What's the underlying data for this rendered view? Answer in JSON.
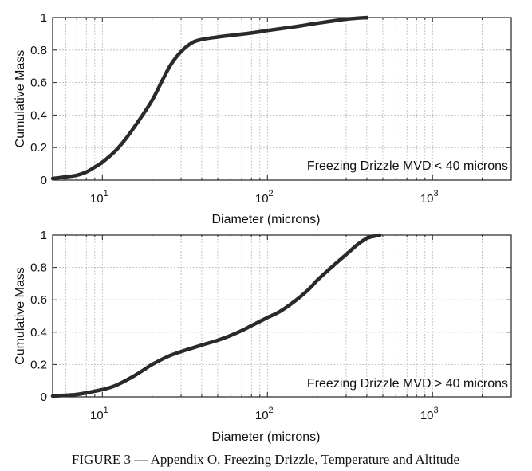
{
  "caption": "FIGURE 3 — Appendix O, Freezing Drizzle, Temperature and Altitude",
  "chart_data": [
    {
      "type": "line",
      "xscale": "log",
      "xlim": [
        5,
        3000
      ],
      "ylim": [
        0,
        1
      ],
      "xlabel": "Diameter (microns)",
      "ylabel": "Cumulative Mass",
      "annotation": "Freezing Drizzle MVD < 40 microns",
      "grid": true,
      "x_ticks": [
        {
          "base": "10",
          "exp": "1"
        },
        {
          "base": "10",
          "exp": "2"
        },
        {
          "base": "10",
          "exp": "3"
        }
      ],
      "y_ticks": [
        "0",
        "0.2",
        "0.4",
        "0.6",
        "0.8",
        "1"
      ],
      "series": [
        {
          "x": [
            5,
            6,
            7,
            8,
            9,
            10,
            12,
            14,
            17,
            20,
            23,
            26,
            30,
            35,
            40,
            50,
            60,
            80,
            100,
            150,
            200,
            300,
            400
          ],
          "y": [
            0.01,
            0.02,
            0.03,
            0.05,
            0.08,
            0.11,
            0.18,
            0.26,
            0.38,
            0.49,
            0.61,
            0.71,
            0.79,
            0.845,
            0.865,
            0.88,
            0.89,
            0.905,
            0.92,
            0.945,
            0.965,
            0.99,
            1.0
          ],
          "color": "#2a2a2a"
        }
      ]
    },
    {
      "type": "line",
      "xscale": "log",
      "xlim": [
        5,
        3000
      ],
      "ylim": [
        0,
        1
      ],
      "xlabel": "Diameter (microns)",
      "ylabel": "Cumulative Mass",
      "annotation": "Freezing Drizzle MVD > 40 microns",
      "grid": true,
      "x_ticks": [
        {
          "base": "10",
          "exp": "1"
        },
        {
          "base": "10",
          "exp": "2"
        },
        {
          "base": "10",
          "exp": "3"
        }
      ],
      "y_ticks": [
        "0",
        "0.2",
        "0.4",
        "0.6",
        "0.8",
        "1"
      ],
      "series": [
        {
          "x": [
            5,
            6,
            7,
            8,
            10,
            12,
            15,
            18,
            20,
            25,
            30,
            40,
            50,
            60,
            70,
            80,
            100,
            120,
            150,
            180,
            200,
            250,
            300,
            350,
            400,
            450,
            480
          ],
          "y": [
            0.005,
            0.01,
            0.015,
            0.025,
            0.045,
            0.07,
            0.12,
            0.17,
            0.2,
            0.25,
            0.28,
            0.32,
            0.35,
            0.38,
            0.41,
            0.44,
            0.49,
            0.53,
            0.6,
            0.67,
            0.72,
            0.81,
            0.88,
            0.94,
            0.98,
            0.995,
            1.0
          ],
          "color": "#2a2a2a"
        }
      ]
    }
  ]
}
